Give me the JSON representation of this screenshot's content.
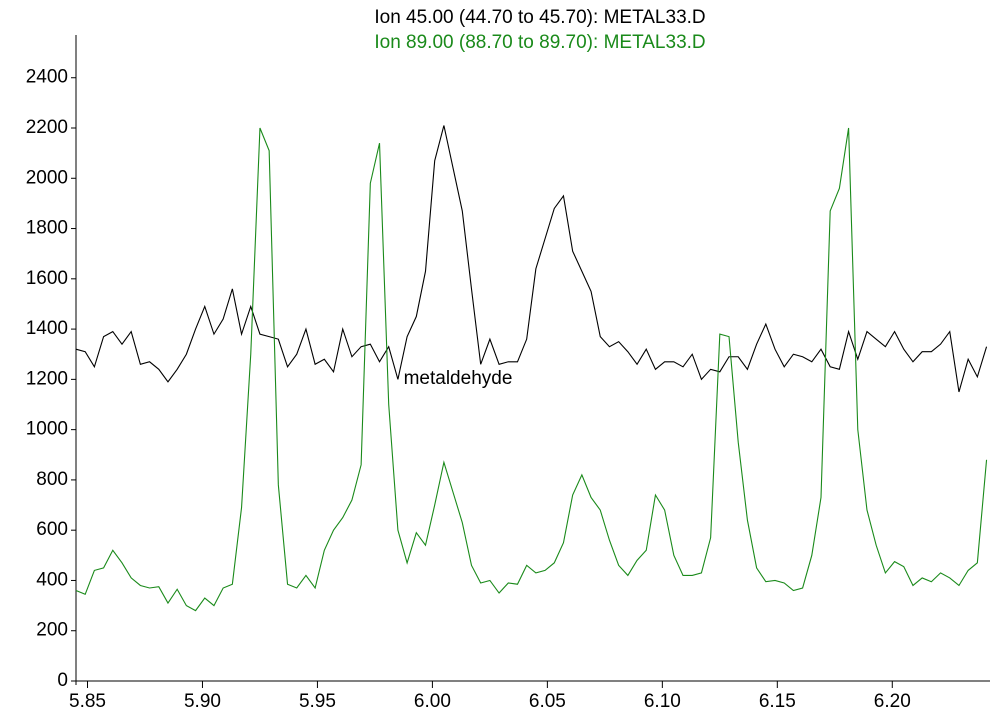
{
  "chart_data": {
    "type": "line",
    "x": [
      5.845,
      5.849,
      5.853,
      5.857,
      5.861,
      5.865,
      5.869,
      5.873,
      5.877,
      5.881,
      5.885,
      5.889,
      5.893,
      5.897,
      5.901,
      5.905,
      5.909,
      5.913,
      5.917,
      5.921,
      5.925,
      5.929,
      5.933,
      5.937,
      5.941,
      5.945,
      5.949,
      5.953,
      5.957,
      5.961,
      5.965,
      5.969,
      5.973,
      5.977,
      5.981,
      5.985,
      5.989,
      5.993,
      5.997,
      6.001,
      6.005,
      6.009,
      6.013,
      6.017,
      6.021,
      6.025,
      6.029,
      6.033,
      6.037,
      6.041,
      6.045,
      6.049,
      6.053,
      6.057,
      6.061,
      6.065,
      6.069,
      6.073,
      6.077,
      6.081,
      6.085,
      6.089,
      6.093,
      6.097,
      6.101,
      6.105,
      6.109,
      6.113,
      6.117,
      6.121,
      6.125,
      6.129,
      6.133,
      6.137,
      6.141,
      6.145,
      6.149,
      6.153,
      6.157,
      6.161,
      6.165,
      6.169,
      6.173,
      6.177,
      6.181,
      6.185,
      6.189,
      6.193,
      6.197,
      6.201,
      6.205,
      6.209,
      6.213,
      6.217,
      6.221,
      6.225,
      6.229,
      6.233,
      6.237,
      6.241
    ],
    "series": [
      {
        "name": "Ion  45.00 (44.70 to 45.70): METAL33.D",
        "color": "#000000",
        "values": [
          1320,
          1310,
          1250,
          1370,
          1390,
          1340,
          1390,
          1260,
          1270,
          1240,
          1190,
          1240,
          1300,
          1400,
          1490,
          1380,
          1440,
          1560,
          1380,
          1490,
          1380,
          1370,
          1360,
          1250,
          1300,
          1400,
          1260,
          1280,
          1230,
          1400,
          1290,
          1330,
          1340,
          1270,
          1330,
          1200,
          1370,
          1450,
          1630,
          2070,
          2210,
          2040,
          1870,
          1560,
          1260,
          1360,
          1260,
          1270,
          1270,
          1360,
          1640,
          1760,
          1880,
          1930,
          1710,
          1630,
          1550,
          1370,
          1330,
          1350,
          1310,
          1260,
          1320,
          1240,
          1270,
          1270,
          1250,
          1300,
          1200,
          1240,
          1230,
          1290,
          1290,
          1240,
          1340,
          1420,
          1320,
          1250,
          1300,
          1290,
          1270,
          1320,
          1250,
          1240,
          1390,
          1280,
          1390,
          1360,
          1330,
          1390,
          1320,
          1270,
          1310,
          1310,
          1340,
          1390,
          1150,
          1280,
          1210,
          1330
        ]
      },
      {
        "name": "Ion  89.00 (88.70 to 89.70): METAL33.D",
        "color": "#1a8a1a",
        "values": [
          360,
          345,
          440,
          450,
          520,
          470,
          410,
          380,
          370,
          375,
          310,
          365,
          300,
          280,
          330,
          300,
          370,
          385,
          690,
          1300,
          2200,
          2110,
          780,
          385,
          370,
          420,
          370,
          520,
          600,
          650,
          720,
          860,
          1980,
          2140,
          1100,
          600,
          470,
          590,
          540,
          700,
          870,
          750,
          630,
          460,
          390,
          400,
          350,
          390,
          385,
          460,
          430,
          440,
          470,
          550,
          740,
          820,
          730,
          680,
          560,
          460,
          420,
          480,
          520,
          740,
          680,
          500,
          420,
          420,
          430,
          570,
          1380,
          1370,
          950,
          640,
          450,
          395,
          400,
          390,
          360,
          370,
          500,
          730,
          1870,
          1960,
          2200,
          1000,
          680,
          540,
          430,
          475,
          455,
          380,
          410,
          395,
          430,
          410,
          380,
          440,
          470,
          880
        ]
      }
    ],
    "annotations": [
      "metaldehyde"
    ],
    "xlim": [
      5.845,
      6.2425
    ],
    "xticks": [
      5.85,
      {
        "value": 5.9,
        "label": "5.90"
      },
      5.95,
      {
        "value": 6.0,
        "label": "6.00"
      },
      6.05,
      {
        "value": 6.1,
        "label": "6.10"
      },
      6.15,
      {
        "value": 6.2,
        "label": "6.20"
      }
    ],
    "ylim": [
      0,
      2570
    ],
    "yticks": [
      0,
      200,
      400,
      600,
      800,
      1000,
      1200,
      1400,
      1600,
      1800,
      2000,
      2200,
      2400
    ],
    "grid": false
  }
}
